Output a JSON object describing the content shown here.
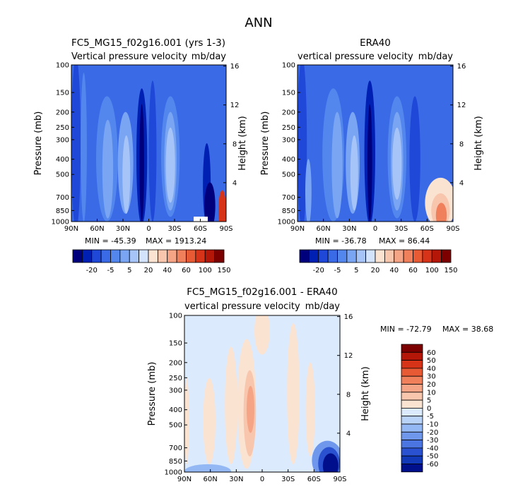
{
  "main_title": "ANN",
  "colors": {
    "blue_levels": [
      "#00007d",
      "#0020b4",
      "#1f48d8",
      "#3a6ae6",
      "#5487ee",
      "#7aa5f3",
      "#a6c4f7",
      "#d2e3fb"
    ],
    "red_levels": [
      "#fbe3d2",
      "#f8c6ad",
      "#f6a486",
      "#f07f5c",
      "#e85a34",
      "#d63318",
      "#b41607",
      "#7d0000"
    ]
  },
  "chart_data": [
    {
      "type": "heatmap",
      "title": "FC5_MG15_f02g16.001 (yrs 1-3)",
      "subtitle_left": "Vertical pressure velocity",
      "subtitle_right": "mb/day",
      "ylabel": "Pressure (mb)",
      "y2label": "Height (km)",
      "x_ticks": [
        "90N",
        "60N",
        "30N",
        "0",
        "30S",
        "60S",
        "90S"
      ],
      "y_ticks": [
        "100",
        "150",
        "200",
        "250",
        "300",
        "400",
        "500",
        "700",
        "850",
        "1000"
      ],
      "y2_ticks": [
        "16",
        "12",
        "8",
        "4"
      ],
      "min_label": "MIN = -45.39",
      "max_label": "MAX = 1913.24",
      "colorbar_labels": [
        "-20",
        "-5",
        "5",
        "20",
        "40",
        "60",
        "100",
        "150"
      ]
    },
    {
      "type": "heatmap",
      "title": "ERA40",
      "subtitle_left": "vertical pressure velocity",
      "subtitle_right": "mb/day",
      "ylabel": "Pressure (mb)",
      "y2label": "Height (km)",
      "x_ticks": [
        "90N",
        "60N",
        "30N",
        "0",
        "30S",
        "60S",
        "90S"
      ],
      "y_ticks": [
        "100",
        "150",
        "200",
        "250",
        "300",
        "400",
        "500",
        "700",
        "850",
        "1000"
      ],
      "y2_ticks": [
        "16",
        "12",
        "8",
        "4"
      ],
      "min_label": "MIN = -36.78",
      "max_label": "MAX = 86.44",
      "colorbar_labels": [
        "-20",
        "-5",
        "5",
        "20",
        "40",
        "60",
        "100",
        "150"
      ]
    },
    {
      "type": "heatmap",
      "title": "FC5_MG15_f02g16.001 - ERA40",
      "subtitle_left": "vertical pressure velocity",
      "subtitle_right": "mb/day",
      "ylabel": "Pressure (mb)",
      "y2label": "Height (km)",
      "x_ticks": [
        "90N",
        "60N",
        "30N",
        "0",
        "30S",
        "60S",
        "90S"
      ],
      "y_ticks": [
        "100",
        "150",
        "200",
        "250",
        "300",
        "400",
        "500",
        "700",
        "850",
        "1000"
      ],
      "y2_ticks": [
        "16",
        "12",
        "8",
        "4"
      ],
      "min_label": "MIN = -72.79",
      "max_label": "MAX = 38.68",
      "colorbar_labels": [
        "60",
        "50",
        "40",
        "30",
        "20",
        "10",
        "5",
        "0",
        "-5",
        "-10",
        "-20",
        "-30",
        "-40",
        "-50",
        "-60"
      ]
    }
  ]
}
